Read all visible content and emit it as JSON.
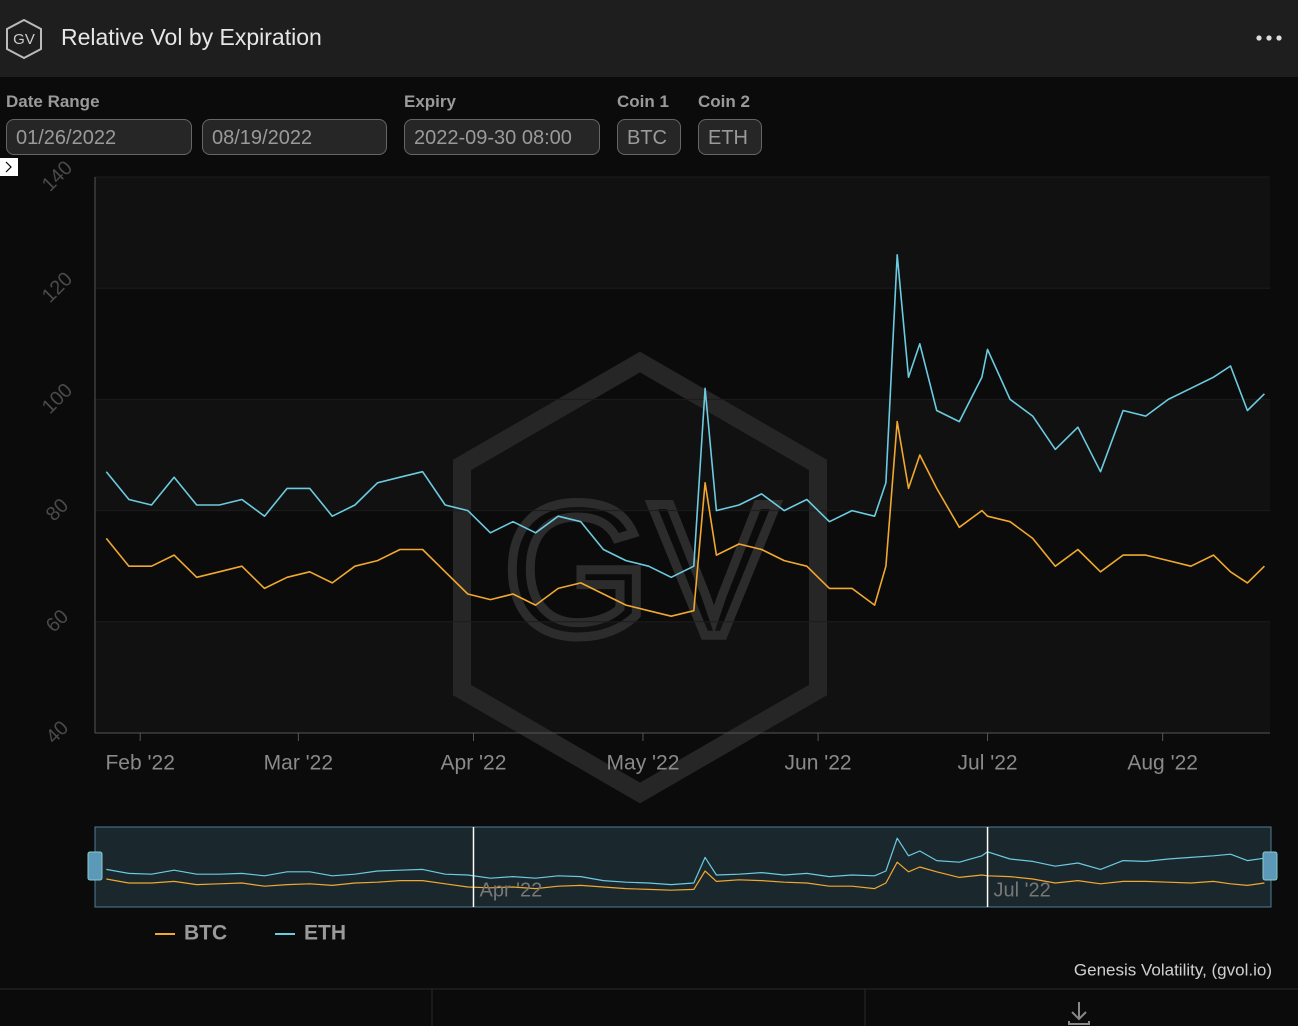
{
  "logo": "GV",
  "header": {
    "title": "Relative Vol by Expiration"
  },
  "filters": [
    {
      "label": "Date Range",
      "values": [
        "01/26/2022",
        "08/19/2022"
      ]
    },
    {
      "label": "Expiry",
      "values": [
        "2022-09-30 08:00"
      ]
    },
    {
      "label": "Coin 1",
      "values": [
        "BTC"
      ]
    },
    {
      "label": "Coin 2",
      "values": [
        "ETH"
      ]
    }
  ],
  "credit": "Genesis Volatility, (gvol.io)",
  "chart_data": {
    "type": "line",
    "watermark": "GV",
    "x": [
      "2022-01-26",
      "2022-01-30",
      "2022-02-03",
      "2022-02-07",
      "2022-02-11",
      "2022-02-15",
      "2022-02-19",
      "2022-02-23",
      "2022-02-27",
      "2022-03-03",
      "2022-03-07",
      "2022-03-11",
      "2022-03-15",
      "2022-03-19",
      "2022-03-23",
      "2022-03-27",
      "2022-03-31",
      "2022-04-04",
      "2022-04-08",
      "2022-04-12",
      "2022-04-16",
      "2022-04-20",
      "2022-04-24",
      "2022-04-28",
      "2022-05-02",
      "2022-05-06",
      "2022-05-10",
      "2022-05-12",
      "2022-05-14",
      "2022-05-18",
      "2022-05-22",
      "2022-05-26",
      "2022-05-30",
      "2022-06-03",
      "2022-06-07",
      "2022-06-11",
      "2022-06-13",
      "2022-06-15",
      "2022-06-17",
      "2022-06-19",
      "2022-06-22",
      "2022-06-26",
      "2022-06-30",
      "2022-07-01",
      "2022-07-05",
      "2022-07-09",
      "2022-07-13",
      "2022-07-17",
      "2022-07-21",
      "2022-07-25",
      "2022-07-29",
      "2022-08-02",
      "2022-08-06",
      "2022-08-10",
      "2022-08-13",
      "2022-08-16",
      "2022-08-19"
    ],
    "series": [
      {
        "name": "BTC",
        "color": "#f0a830",
        "values": [
          75,
          70,
          70,
          72,
          68,
          69,
          70,
          66,
          68,
          69,
          67,
          70,
          71,
          73,
          73,
          69,
          65,
          64,
          65,
          63,
          66,
          67,
          65,
          63,
          62,
          61,
          62,
          85,
          72,
          74,
          73,
          71,
          70,
          66,
          66,
          63,
          70,
          96,
          84,
          90,
          84,
          77,
          80,
          79,
          78,
          75,
          70,
          73,
          69,
          72,
          72,
          71,
          70,
          72,
          69,
          67,
          70
        ]
      },
      {
        "name": "ETH",
        "color": "#6ccbe0",
        "values": [
          87,
          82,
          81,
          86,
          81,
          81,
          82,
          79,
          84,
          84,
          79,
          81,
          85,
          86,
          87,
          81,
          80,
          76,
          78,
          76,
          79,
          78,
          73,
          71,
          70,
          68,
          70,
          102,
          80,
          81,
          83,
          80,
          82,
          78,
          80,
          79,
          85,
          126,
          104,
          110,
          98,
          96,
          104,
          109,
          100,
          97,
          91,
          95,
          87,
          98,
          97,
          100,
          102,
          104,
          106,
          98,
          101
        ]
      }
    ],
    "xlim": [
      "2022-01-24",
      "2022-08-20"
    ],
    "xticks": [
      {
        "value": "2022-02-01",
        "label": "Feb '22"
      },
      {
        "value": "2022-03-01",
        "label": "Mar '22"
      },
      {
        "value": "2022-04-01",
        "label": "Apr '22"
      },
      {
        "value": "2022-05-01",
        "label": "May '22"
      },
      {
        "value": "2022-06-01",
        "label": "Jun '22"
      },
      {
        "value": "2022-07-01",
        "label": "Jul '22"
      },
      {
        "value": "2022-08-01",
        "label": "Aug '22"
      }
    ],
    "ylim": [
      40,
      140
    ],
    "yticks": [
      40,
      60,
      80,
      100,
      120,
      140
    ],
    "grid": true,
    "navigator_xticks": [
      {
        "value": "2022-04-01",
        "label": "Apr '22"
      },
      {
        "value": "2022-07-01",
        "label": "Jul '22"
      }
    ]
  }
}
